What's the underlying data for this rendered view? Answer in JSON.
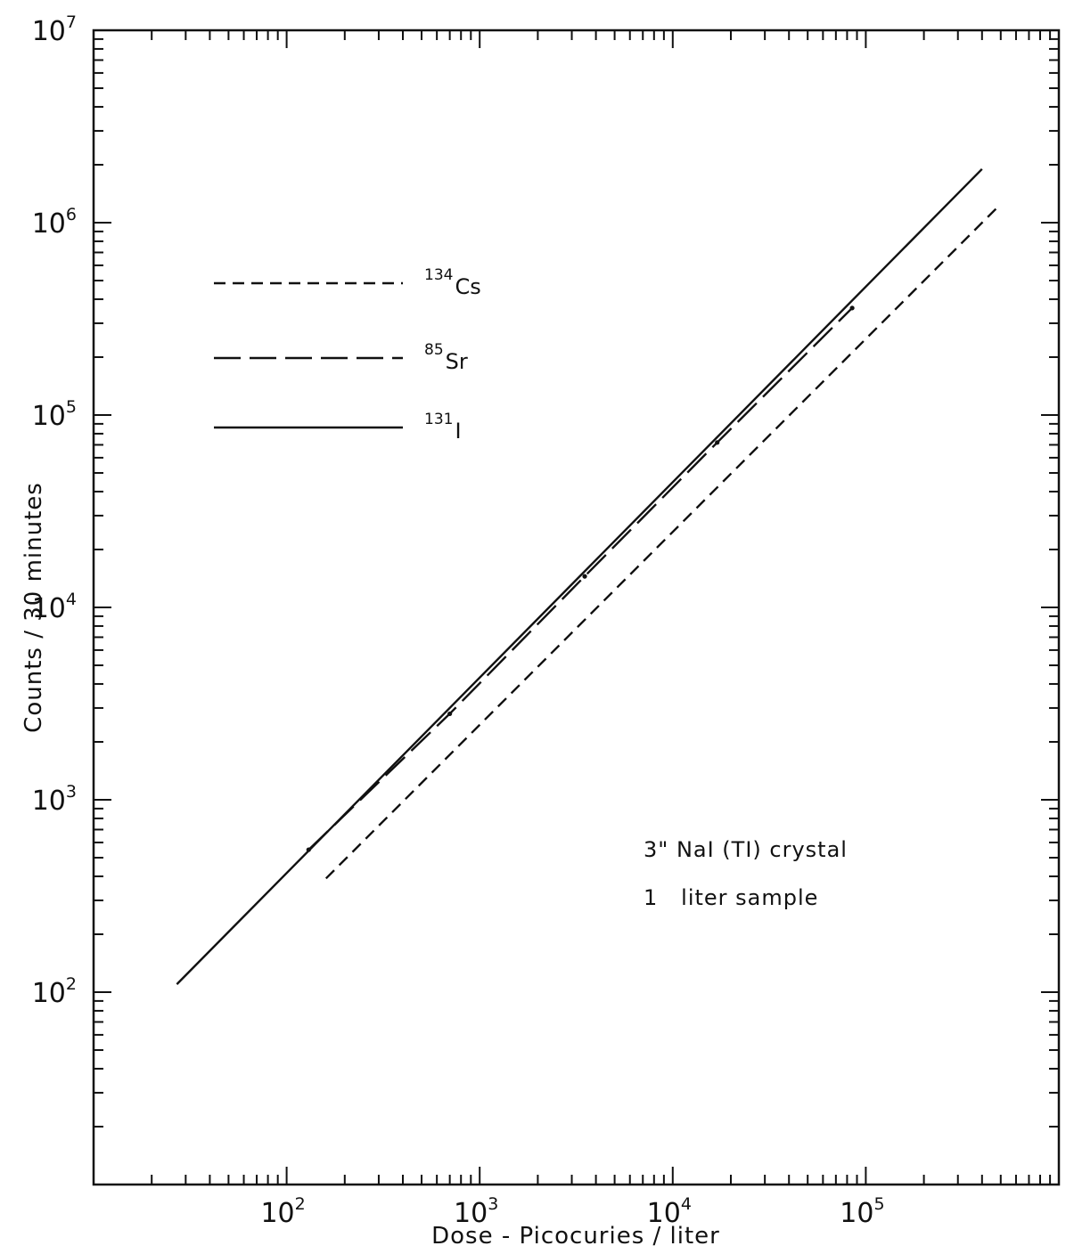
{
  "chart_data": {
    "type": "line",
    "xscale": "log",
    "yscale": "log",
    "xlim": [
      10,
      1000000
    ],
    "ylim": [
      10,
      10000000
    ],
    "xlabel": "Dose - Picocuries / liter",
    "ylabel": "Counts / 30 minutes",
    "grid": false,
    "legend_position": "upper-left",
    "x_ticks": [
      {
        "base": "10",
        "exp": "2",
        "value": 100
      },
      {
        "base": "10",
        "exp": "3",
        "value": 1000
      },
      {
        "base": "10",
        "exp": "4",
        "value": 10000
      },
      {
        "base": "10",
        "exp": "5",
        "value": 100000
      }
    ],
    "y_ticks": [
      {
        "base": "10",
        "exp": "2",
        "value": 100
      },
      {
        "base": "10",
        "exp": "3",
        "value": 1000
      },
      {
        "base": "10",
        "exp": "4",
        "value": 10000
      },
      {
        "base": "10",
        "exp": "5",
        "value": 100000
      },
      {
        "base": "10",
        "exp": "6",
        "value": 1000000
      },
      {
        "base": "10",
        "exp": "7",
        "value": 10000000
      }
    ],
    "series": [
      {
        "name_mass": "134",
        "name_element": "Cs",
        "style": "short-dash",
        "x": [
          160,
          500000
        ],
        "y": [
          390,
          1250000
        ]
      },
      {
        "name_mass": "85",
        "name_element": "Sr",
        "style": "long-dash",
        "x": [
          130,
          700,
          3500,
          17000,
          85000
        ],
        "y": [
          550,
          2800,
          14500,
          72000,
          360000
        ]
      },
      {
        "name_mass": "131",
        "name_element": "I",
        "style": "solid",
        "x": [
          27,
          400000
        ],
        "y": [
          110,
          1900000
        ]
      }
    ],
    "annotations": [
      "3\" NaI (TI) crystal",
      "1   liter sample"
    ]
  }
}
